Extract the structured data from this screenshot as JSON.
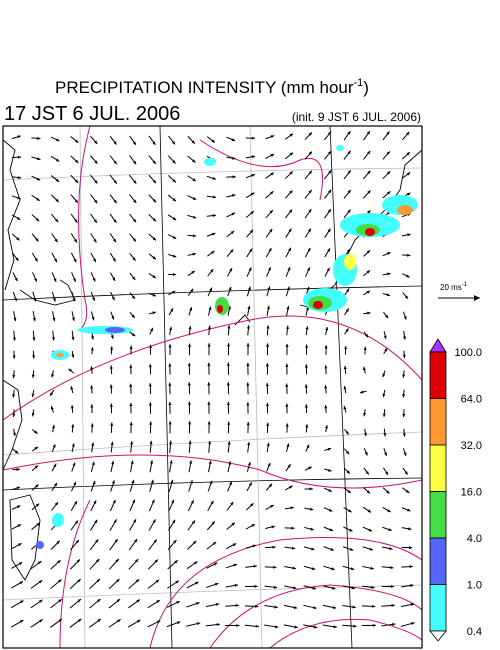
{
  "header": {
    "title": "PRECIPITATION INTENSITY (mm hour",
    "title_sup": "-1",
    "title_close": ")",
    "valid_time": "17 JST 6 JUL. 2006",
    "init_time": "(init. 9 JST 6 JUL. 2006)"
  },
  "vector_key": {
    "label": "20 ms",
    "label_sup": "-1"
  },
  "colorbar": {
    "levels": [
      "100.0",
      "64.0",
      "32.0",
      "16.0",
      "4.0",
      "1.0",
      "0.4"
    ],
    "colors": [
      "#dd0000",
      "#ff9933",
      "#ffff44",
      "#44dd44",
      "#5566ff",
      "#44ffff"
    ],
    "over_color": "#aa33ff",
    "under_color": "#ffffff"
  }
}
